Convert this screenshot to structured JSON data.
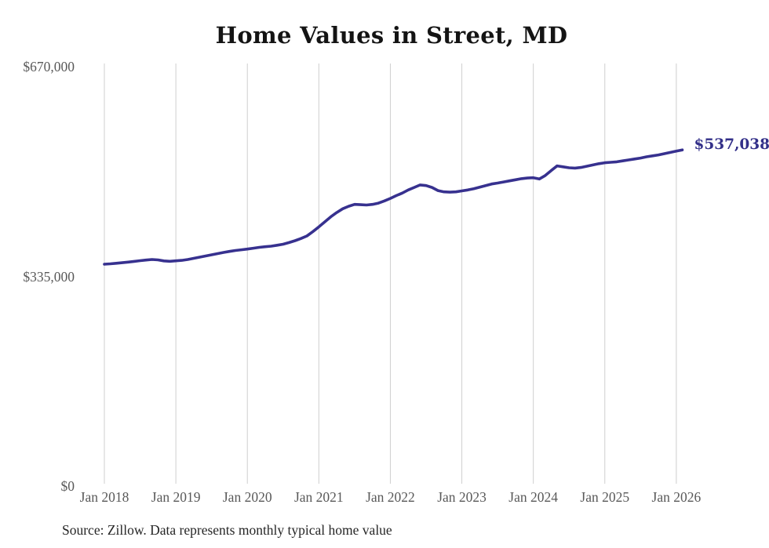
{
  "page": {
    "title": "Home Values in Street, MD",
    "source_note": "Source: Zillow. Data represents monthly typical home value"
  },
  "chart_data": {
    "type": "line",
    "title": "Home Values in Street, MD",
    "xlabel": "",
    "ylabel": "",
    "frequency": "monthly",
    "grid": true,
    "legend": false,
    "ylim": [
      0,
      670000
    ],
    "line_color": "#37318f",
    "end_label": "$537,038",
    "latest_value": 537038,
    "y_ticks": [
      {
        "value": 670000,
        "label": "$670,000"
      },
      {
        "value": 335000,
        "label": "$335,000"
      },
      {
        "value": 0,
        "label": "$0"
      }
    ],
    "x_tick_labels": [
      "Jan 2018",
      "Jan 2019",
      "Jan 2020",
      "Jan 2021",
      "Jan 2022",
      "Jan 2023",
      "Jan 2024",
      "Jan 2025",
      "Jan 2026"
    ],
    "months": [
      "2018-01",
      "2018-02",
      "2018-03",
      "2018-04",
      "2018-05",
      "2018-06",
      "2018-07",
      "2018-08",
      "2018-09",
      "2018-10",
      "2018-11",
      "2018-12",
      "2019-01",
      "2019-02",
      "2019-03",
      "2019-04",
      "2019-05",
      "2019-06",
      "2019-07",
      "2019-08",
      "2019-09",
      "2019-10",
      "2019-11",
      "2019-12",
      "2020-01",
      "2020-02",
      "2020-03",
      "2020-04",
      "2020-05",
      "2020-06",
      "2020-07",
      "2020-08",
      "2020-09",
      "2020-10",
      "2020-11",
      "2020-12",
      "2021-01",
      "2021-02",
      "2021-03",
      "2021-04",
      "2021-05",
      "2021-06",
      "2021-07",
      "2021-08",
      "2021-09",
      "2021-10",
      "2021-11",
      "2021-12",
      "2022-01",
      "2022-02",
      "2022-03",
      "2022-04",
      "2022-05",
      "2022-06",
      "2022-07",
      "2022-08",
      "2022-09",
      "2022-10",
      "2022-11",
      "2022-12",
      "2023-01",
      "2023-02",
      "2023-03",
      "2023-04",
      "2023-05",
      "2023-06",
      "2023-07",
      "2023-08",
      "2023-09",
      "2023-10",
      "2023-11",
      "2023-12",
      "2024-01",
      "2024-02",
      "2024-03",
      "2024-04",
      "2024-05",
      "2024-06",
      "2024-07",
      "2024-08",
      "2024-09",
      "2024-10",
      "2024-11",
      "2024-12",
      "2025-01",
      "2025-02",
      "2025-03",
      "2025-04",
      "2025-05",
      "2025-06",
      "2025-07",
      "2025-08",
      "2025-09",
      "2025-10",
      "2025-11",
      "2025-12",
      "2026-01",
      "2026-02"
    ],
    "values": [
      354400,
      355000,
      355900,
      356800,
      357800,
      358900,
      360000,
      361000,
      361900,
      361300,
      359700,
      359100,
      359800,
      360500,
      361900,
      363800,
      365700,
      367600,
      369400,
      371300,
      373200,
      374800,
      376300,
      377500,
      378600,
      380000,
      381300,
      382300,
      383200,
      384700,
      386300,
      389000,
      392000,
      395500,
      399500,
      406500,
      414000,
      422000,
      430000,
      437000,
      443000,
      447000,
      450000,
      449500,
      449000,
      450000,
      452000,
      455500,
      459500,
      464000,
      468000,
      473000,
      477000,
      481000,
      480000,
      477000,
      472000,
      470000,
      469500,
      470000,
      471500,
      473000,
      475000,
      477500,
      480000,
      482500,
      484000,
      485800,
      487500,
      489300,
      491000,
      492000,
      492500,
      490500,
      496000,
      504000,
      511500,
      510000,
      508500,
      508000,
      509000,
      511000,
      513000,
      515000,
      516500,
      517200,
      518000,
      519500,
      521000,
      522500,
      524000,
      526000,
      527500,
      529000,
      531000,
      533000,
      535000,
      537038
    ],
    "source": "Source: Zillow. Data represents monthly typical home value"
  }
}
